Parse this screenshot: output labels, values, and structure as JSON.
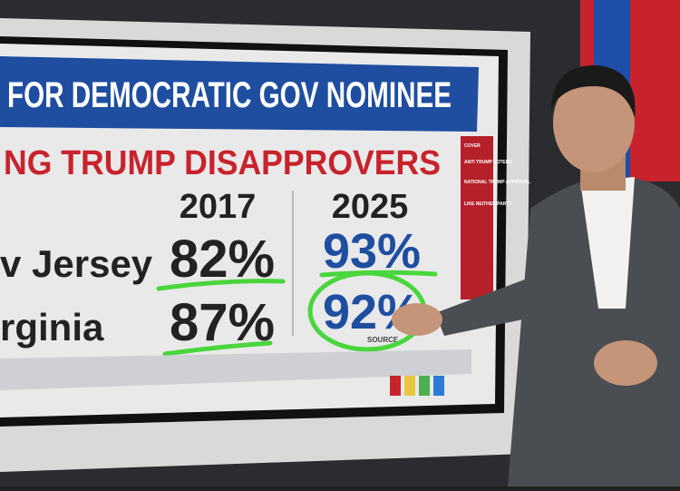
{
  "banner": "FOR DEMOCRATIC GOV NOMINEE",
  "subtitle": "NG TRUMP DISAPPROVERS",
  "table": {
    "columns": [
      "2017",
      "2025"
    ],
    "rows": [
      [
        "v Jersey",
        "82%",
        "93%"
      ],
      [
        "rginia",
        "87%",
        "92%"
      ]
    ]
  },
  "source": "SOURCE",
  "sidebar": [
    "COVER",
    "ANTI TRUMP VOTERS",
    "NATIONAL TRUMP APPROVAL",
    "LIKE NEITHER PARTY"
  ]
}
